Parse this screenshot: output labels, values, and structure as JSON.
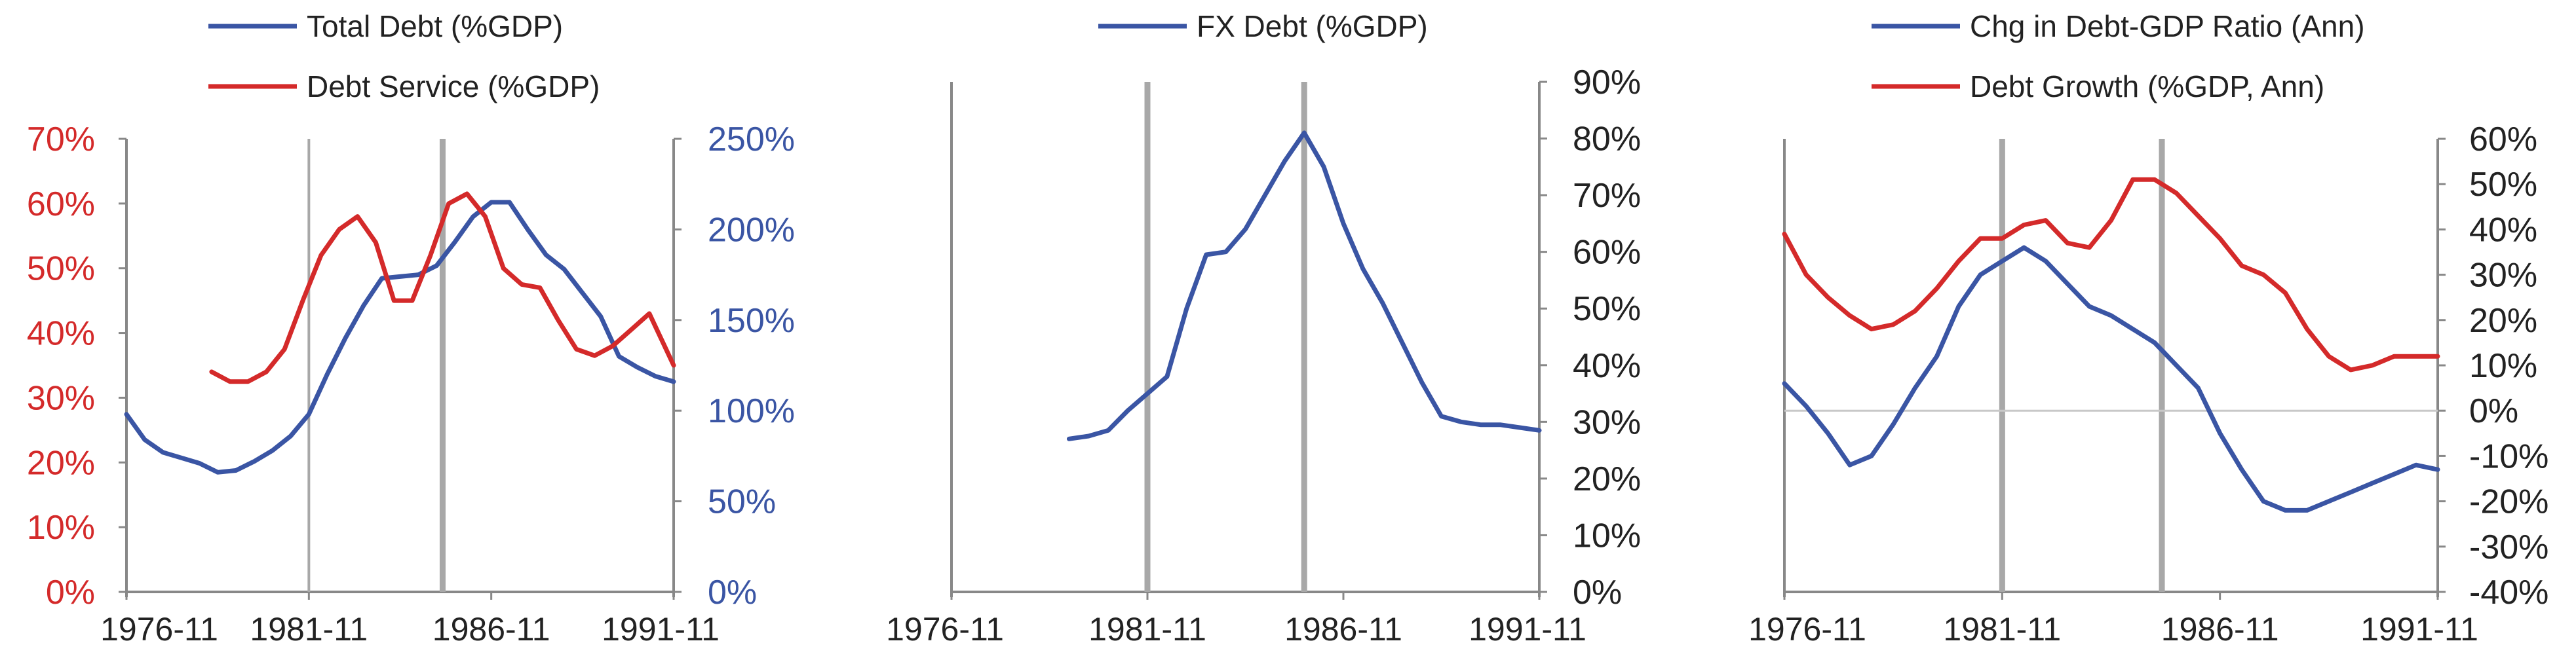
{
  "colors": {
    "blue": "#3a55a4",
    "red": "#d42a2a",
    "axis": "#888888",
    "vline": "#a8a8a8",
    "zero_line": "#c8c8c8"
  },
  "chart_data": [
    {
      "type": "line",
      "x_ticks": [
        "1976-11",
        "1981-11",
        "1986-11",
        "1991-11"
      ],
      "x_range": [
        "1976-11",
        "1991-11"
      ],
      "vertical_lines": [
        {
          "date": "1981-11",
          "style": "thin"
        },
        {
          "date": "1985-07",
          "style": "thick"
        }
      ],
      "y_left": {
        "range": [
          0,
          70
        ],
        "ticks": [
          "0%",
          "10%",
          "20%",
          "30%",
          "40%",
          "50%",
          "60%",
          "70%"
        ],
        "color": "#d42a2a"
      },
      "y_right": {
        "range": [
          0,
          250
        ],
        "ticks": [
          "0%",
          "50%",
          "100%",
          "150%",
          "200%",
          "250%"
        ],
        "color": "#3a55a4"
      },
      "legend": [
        "Total Debt (%GDP)",
        "Debt Service (%GDP)"
      ],
      "series": [
        {
          "name": "Total Debt (%GDP)",
          "axis": "right",
          "color": "#3a55a4",
          "x": [
            "1976-11",
            "1977-05",
            "1977-11",
            "1978-05",
            "1978-11",
            "1979-05",
            "1979-11",
            "1980-05",
            "1980-11",
            "1981-05",
            "1981-11",
            "1982-05",
            "1982-11",
            "1983-05",
            "1983-11",
            "1984-05",
            "1984-11",
            "1985-05",
            "1985-11",
            "1986-05",
            "1986-11",
            "1987-05",
            "1987-11",
            "1988-05",
            "1988-11",
            "1989-05",
            "1989-11",
            "1990-05",
            "1990-11",
            "1991-05",
            "1991-11"
          ],
          "y": [
            98,
            84,
            77,
            74,
            71,
            66,
            67,
            72,
            78,
            86,
            98,
            120,
            140,
            158,
            173,
            174,
            175,
            180,
            193,
            207,
            215,
            215,
            200,
            186,
            178,
            165,
            152,
            130,
            124,
            119,
            116
          ]
        },
        {
          "name": "Debt Service (%GDP)",
          "axis": "left",
          "color": "#d42a2a",
          "x": [
            "1979-03",
            "1979-09",
            "1980-03",
            "1980-09",
            "1981-03",
            "1981-09",
            "1982-03",
            "1982-09",
            "1983-03",
            "1983-09",
            "1984-03",
            "1984-09",
            "1985-03",
            "1985-09",
            "1986-03",
            "1986-09",
            "1987-03",
            "1987-09",
            "1988-03",
            "1988-09",
            "1989-03",
            "1989-09",
            "1990-03",
            "1990-09",
            "1991-03",
            "1991-11"
          ],
          "y": [
            34,
            32.5,
            32.5,
            34,
            37.5,
            45,
            52,
            56,
            58,
            54,
            45,
            45,
            52,
            60,
            61.5,
            58,
            50,
            47.5,
            47,
            42,
            37.5,
            36.5,
            38,
            40.5,
            43,
            35
          ]
        }
      ]
    },
    {
      "type": "line",
      "x_ticks": [
        "1976-11",
        "1981-11",
        "1986-11",
        "1991-11"
      ],
      "x_range": [
        "1976-11",
        "1991-11"
      ],
      "vertical_lines": [
        {
          "date": "1981-11",
          "style": "thick"
        },
        {
          "date": "1985-11",
          "style": "thick"
        }
      ],
      "y_right": {
        "range": [
          0,
          90
        ],
        "ticks": [
          "0%",
          "10%",
          "20%",
          "30%",
          "40%",
          "50%",
          "60%",
          "70%",
          "80%",
          "90%"
        ],
        "color": "#222222"
      },
      "legend": [
        "FX Debt (%GDP)"
      ],
      "series": [
        {
          "name": "FX Debt (%GDP)",
          "axis": "right",
          "color": "#3a55a4",
          "x": [
            "1979-11",
            "1980-05",
            "1980-11",
            "1981-05",
            "1981-11",
            "1982-05",
            "1982-11",
            "1983-05",
            "1983-11",
            "1984-05",
            "1984-11",
            "1985-05",
            "1985-11",
            "1986-05",
            "1986-11",
            "1987-05",
            "1987-11",
            "1988-05",
            "1988-11",
            "1989-05",
            "1989-11",
            "1990-05",
            "1990-11",
            "1991-05",
            "1991-11"
          ],
          "y": [
            27,
            27.5,
            28.5,
            32,
            35,
            38,
            50,
            59.5,
            60,
            64,
            70,
            76,
            81,
            75,
            65,
            57,
            51,
            44,
            37,
            31,
            30,
            29.5,
            29.5,
            29,
            28.5
          ]
        }
      ]
    },
    {
      "type": "line",
      "x_ticks": [
        "1976-11",
        "1981-11",
        "1986-11",
        "1991-11"
      ],
      "x_range": [
        "1976-11",
        "1991-11"
      ],
      "vertical_lines": [
        {
          "date": "1981-11",
          "style": "thick"
        },
        {
          "date": "1985-07",
          "style": "thick"
        }
      ],
      "y_right": {
        "range": [
          -40,
          60
        ],
        "ticks": [
          "-40%",
          "-30%",
          "-20%",
          "-10%",
          "0%",
          "10%",
          "20%",
          "30%",
          "40%",
          "50%",
          "60%"
        ],
        "color": "#222222"
      },
      "zero_line": true,
      "legend": [
        "Chg in Debt-GDP Ratio (Ann)",
        "Debt Growth (%GDP, Ann)"
      ],
      "series": [
        {
          "name": "Chg in Debt-GDP Ratio (Ann)",
          "axis": "right",
          "color": "#3a55a4",
          "x": [
            "1976-11",
            "1977-05",
            "1977-11",
            "1978-05",
            "1978-11",
            "1979-05",
            "1979-11",
            "1980-05",
            "1980-11",
            "1981-05",
            "1981-11",
            "1982-05",
            "1982-11",
            "1983-05",
            "1983-11",
            "1984-05",
            "1984-11",
            "1985-05",
            "1985-11",
            "1986-05",
            "1986-11",
            "1987-05",
            "1987-11",
            "1988-05",
            "1988-11",
            "1989-05",
            "1989-11",
            "1990-05",
            "1990-11",
            "1991-05",
            "1991-11"
          ],
          "y": [
            6,
            1,
            -5,
            -12,
            -10,
            -3,
            5,
            12,
            23,
            30,
            33,
            36,
            33,
            28,
            23,
            21,
            18,
            15,
            10,
            5,
            -5,
            -13,
            -20,
            -22,
            -22,
            -20,
            -18,
            -16,
            -14,
            -12,
            -13
          ]
        },
        {
          "name": "Debt Growth (%GDP, Ann)",
          "axis": "right",
          "color": "#d42a2a",
          "x": [
            "1976-11",
            "1977-05",
            "1977-11",
            "1978-05",
            "1978-11",
            "1979-05",
            "1979-11",
            "1980-05",
            "1980-11",
            "1981-05",
            "1981-11",
            "1982-05",
            "1982-11",
            "1983-05",
            "1983-11",
            "1984-05",
            "1984-11",
            "1985-05",
            "1985-11",
            "1986-05",
            "1986-11",
            "1987-05",
            "1987-11",
            "1988-05",
            "1988-11",
            "1989-05",
            "1989-11",
            "1990-05",
            "1990-11",
            "1991-05",
            "1991-11"
          ],
          "y": [
            39,
            30,
            25,
            21,
            18,
            19,
            22,
            27,
            33,
            38,
            38,
            41,
            42,
            37,
            36,
            42,
            51,
            51,
            48,
            43,
            38,
            32,
            30,
            26,
            18,
            12,
            9,
            10,
            12,
            12,
            12
          ]
        }
      ]
    }
  ]
}
